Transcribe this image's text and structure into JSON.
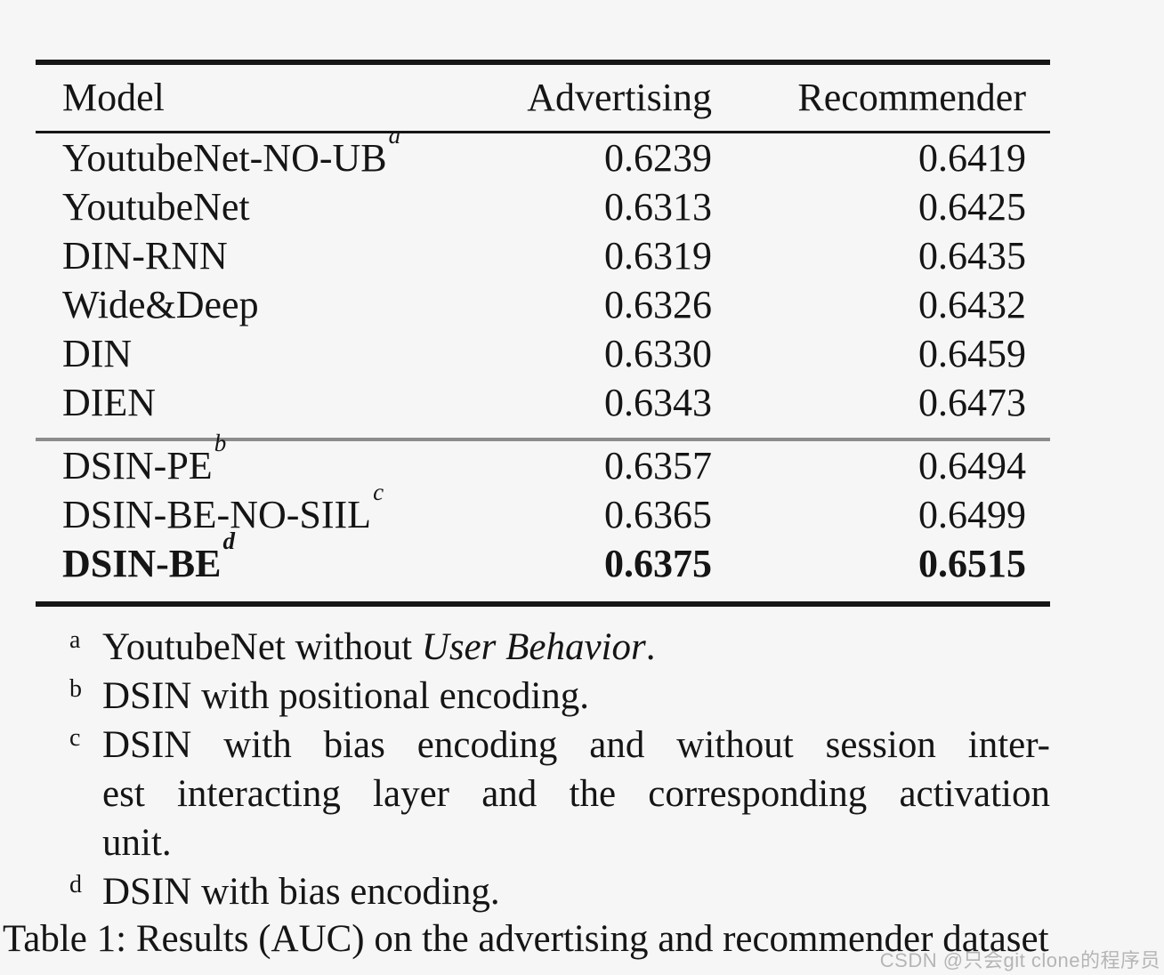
{
  "table": {
    "headers": {
      "model": "Model",
      "advertising": "Advertising",
      "recommender": "Recommender"
    },
    "rows": [
      {
        "name": "YoutubeNet-NO-UB",
        "sup": "a",
        "advertising": "0.6239",
        "recommender": "0.6419"
      },
      {
        "name": "YoutubeNet",
        "sup": "",
        "advertising": "0.6313",
        "recommender": "0.6425"
      },
      {
        "name": "DIN-RNN",
        "sup": "",
        "advertising": "0.6319",
        "recommender": "0.6435"
      },
      {
        "name": "Wide&Deep",
        "sup": "",
        "advertising": "0.6326",
        "recommender": "0.6432"
      },
      {
        "name": "DIN",
        "sup": "",
        "advertising": "0.6330",
        "recommender": "0.6459"
      },
      {
        "name": "DIEN",
        "sup": "",
        "advertising": "0.6343",
        "recommender": "0.6473"
      },
      {
        "name": "DSIN-PE",
        "sup": "b",
        "advertising": "0.6357",
        "recommender": "0.6494"
      },
      {
        "name": "DSIN-BE-NO-SIIL",
        "sup": "c",
        "advertising": "0.6365",
        "recommender": "0.6499"
      },
      {
        "name": "DSIN-BE",
        "sup": "d",
        "advertising": "0.6375",
        "recommender": "0.6515"
      }
    ]
  },
  "footnotes": [
    {
      "marker": "a",
      "prefix": "YoutubeNet without ",
      "italic": "User Behavior",
      "suffix": "."
    },
    {
      "marker": "b",
      "text": "DSIN with positional encoding."
    },
    {
      "marker": "c",
      "line1": "DSIN with bias encoding and without session inter-",
      "line2": "est interacting layer and the corresponding activation",
      "line3": "unit."
    },
    {
      "marker": "d",
      "text": "DSIN with bias encoding."
    }
  ],
  "caption": "Table 1: Results (AUC) on the advertising and recommender dataset",
  "watermark": "CSDN @只会git clone的程序员",
  "colors": {
    "background": "#f6f6f6",
    "text": "#151515",
    "rule": "#161616",
    "midrule": "#8c8c8c",
    "watermark": "#b5b5b5"
  }
}
